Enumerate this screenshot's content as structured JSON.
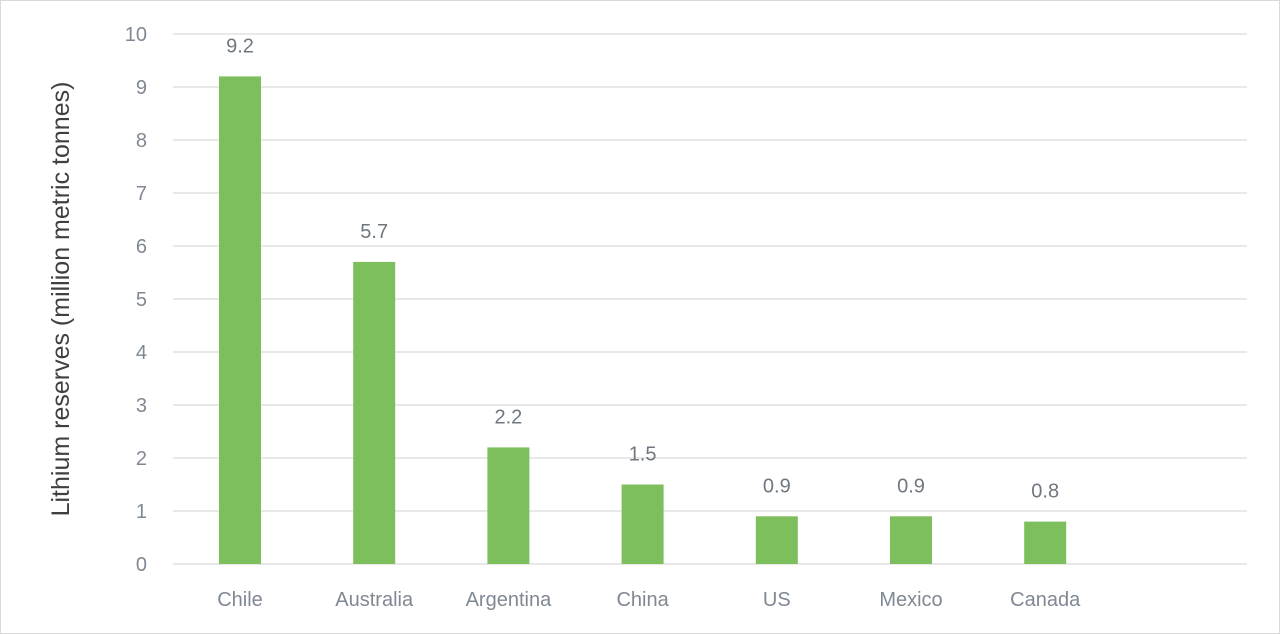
{
  "chart_data": {
    "type": "bar",
    "title": "",
    "xlabel": "",
    "ylabel": "Lithium reserves (million metric tonnes)",
    "categories": [
      "Chile",
      "Australia",
      "Argentina",
      "China",
      "US",
      "Mexico",
      "Canada"
    ],
    "values": [
      9.2,
      5.7,
      2.2,
      1.5,
      0.9,
      0.9,
      0.8
    ],
    "data_labels": [
      "9.2",
      "5.7",
      "2.2",
      "1.5",
      "0.9",
      "0.9",
      "0.8"
    ],
    "y_ticks": [
      "0",
      "1",
      "2",
      "3",
      "4",
      "5",
      "6",
      "7",
      "8",
      "9",
      "10"
    ],
    "ylim": [
      0,
      10
    ],
    "grid": true,
    "legend": "none",
    "bar_color": "#7dbe5d",
    "grid_color": "#d9d9d9"
  }
}
